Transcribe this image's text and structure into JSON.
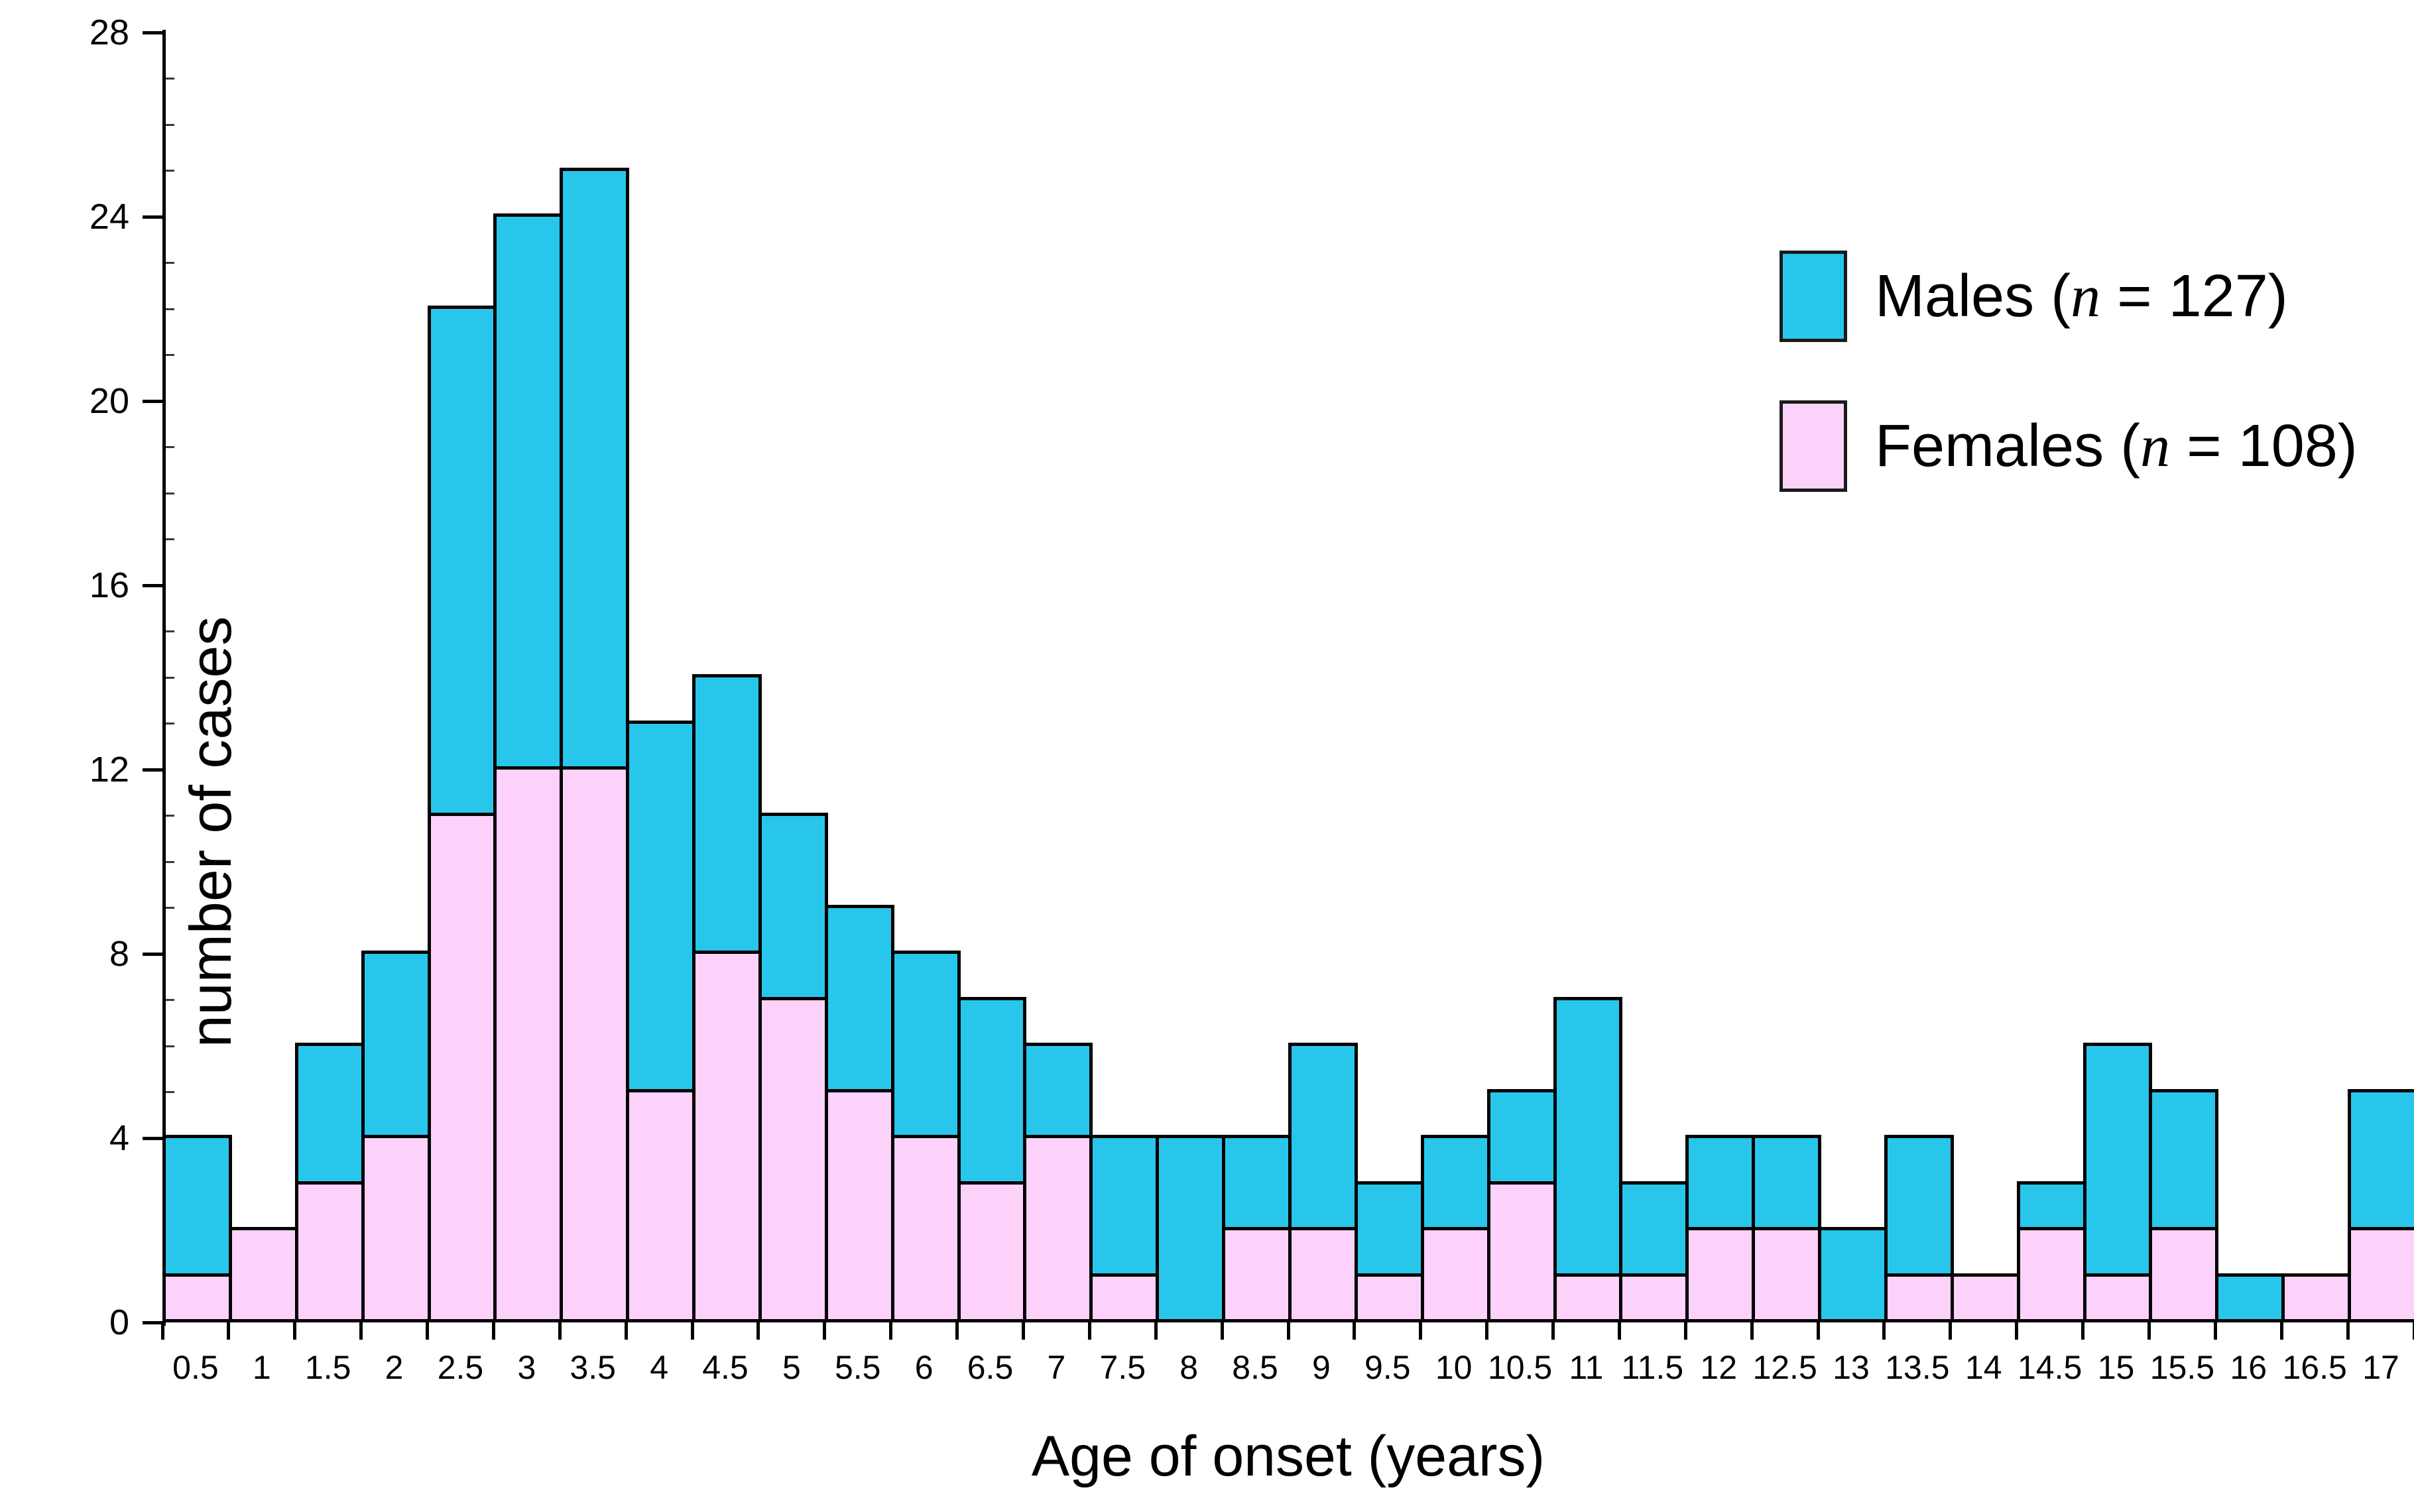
{
  "chart_data": {
    "type": "bar",
    "stacked": true,
    "title": "",
    "xlabel": "Age of onset (years)",
    "ylabel": "number of cases",
    "ylim": [
      0,
      28
    ],
    "y_major_ticks": [
      0,
      4,
      8,
      12,
      16,
      20,
      24,
      28
    ],
    "grid": false,
    "legend_position": "upper right",
    "categories": [
      "0.5",
      "1",
      "1.5",
      "2",
      "2.5",
      "3",
      "3.5",
      "4",
      "4.5",
      "5",
      "5.5",
      "6",
      "6.5",
      "7",
      "7.5",
      "8",
      "8.5",
      "9",
      "9.5",
      "10",
      "10.5",
      "11",
      "11.5",
      "12",
      "12.5",
      "13",
      "13.5",
      "14",
      "14.5",
      "15",
      "15.5",
      "16",
      "16.5",
      "17"
    ],
    "series": [
      {
        "name": "Females",
        "legend_label": "Females (n = 108)",
        "n": 108,
        "color": "#FCD2FA",
        "values": [
          1,
          2,
          3,
          4,
          11,
          12,
          12,
          5,
          8,
          7,
          5,
          4,
          3,
          4,
          1,
          0,
          2,
          2,
          1,
          2,
          3,
          1,
          1,
          2,
          2,
          0,
          1,
          1,
          2,
          1,
          2,
          0,
          1,
          2
        ]
      },
      {
        "name": "Males",
        "legend_label": "Males (n = 127)",
        "n": 127,
        "color": "#29C6EC",
        "values": [
          3,
          0,
          3,
          4,
          11,
          12,
          13,
          8,
          6,
          4,
          4,
          4,
          4,
          2,
          3,
          4,
          2,
          4,
          2,
          2,
          2,
          6,
          2,
          2,
          2,
          2,
          3,
          0,
          1,
          5,
          3,
          1,
          0,
          3
        ]
      }
    ]
  },
  "legend": {
    "males": {
      "pre": "Males (",
      "n": "n",
      "post": " = 127)"
    },
    "females": {
      "pre": "Females (",
      "n": "n",
      "post": " = 108)"
    }
  }
}
